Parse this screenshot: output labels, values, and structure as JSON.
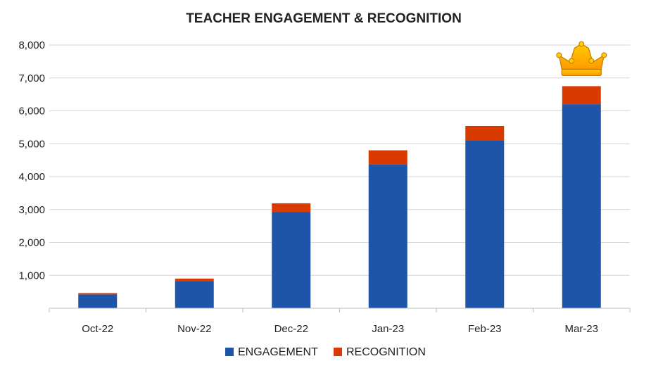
{
  "chart_data": {
    "type": "bar",
    "stacked": true,
    "title": "TEACHER ENGAGEMENT & RECOGNITION",
    "xlabel": "",
    "ylabel": "",
    "categories": [
      "Oct-22",
      "Nov-22",
      "Dec-22",
      "Jan-23",
      "Feb-23",
      "Mar-23"
    ],
    "series": [
      {
        "name": "ENGAGEMENT",
        "color": "#1f55a8",
        "values": [
          420,
          830,
          2920,
          4380,
          5100,
          6200
        ]
      },
      {
        "name": "RECOGNITION",
        "color": "#d83a00",
        "values": [
          40,
          70,
          270,
          420,
          440,
          550
        ]
      }
    ],
    "ylim": [
      0,
      8000
    ],
    "yticks": [
      1000,
      2000,
      3000,
      4000,
      5000,
      6000,
      7000,
      8000
    ],
    "ytick_labels": [
      "1,000",
      "2,000",
      "3,000",
      "4,000",
      "5,000",
      "6,000",
      "7,000",
      "8,000"
    ],
    "grid": true,
    "legend_position": "bottom",
    "annotation": {
      "icon": "crown-icon",
      "category": "Mar-23",
      "colors": [
        "#ffcc00",
        "#ff9900"
      ]
    }
  }
}
